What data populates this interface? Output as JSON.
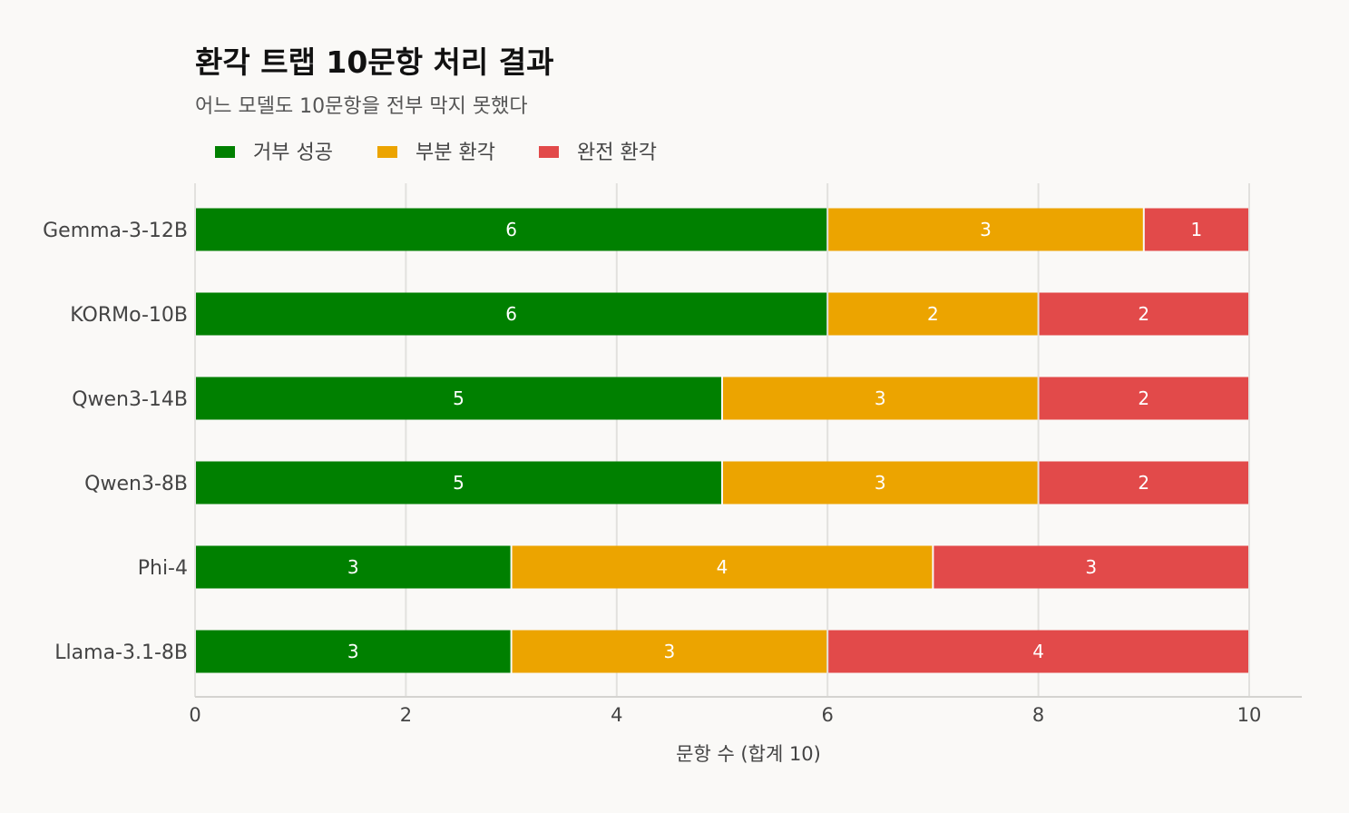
{
  "chart_data": {
    "type": "bar",
    "orientation": "horizontal",
    "stacked": true,
    "title": "환각 트랩 10문항 처리 결과",
    "subtitle": "어느 모델도 10문항을 전부 막지 못했다",
    "xlabel": "문항 수 (합계 10)",
    "ylabel": "",
    "xlim": [
      0,
      10
    ],
    "xticks": [
      "0",
      "2",
      "4",
      "6",
      "8",
      "10"
    ],
    "grid": "vertical",
    "legend_position": "top-left",
    "categories": [
      "Gemma-3-12B",
      "KORMo-10B",
      "Qwen3-14B",
      "Qwen3-8B",
      "Phi-4",
      "Llama-3.1-8B"
    ],
    "series": [
      {
        "name": "거부 성공",
        "color": "#008000",
        "values": [
          6,
          6,
          5,
          5,
          3,
          3
        ]
      },
      {
        "name": "부분 환각",
        "color": "#eca400",
        "values": [
          3,
          2,
          3,
          3,
          4,
          3
        ]
      },
      {
        "name": "완전 환각",
        "color": "#e24a4a",
        "values": [
          1,
          2,
          2,
          2,
          3,
          4
        ]
      }
    ]
  }
}
